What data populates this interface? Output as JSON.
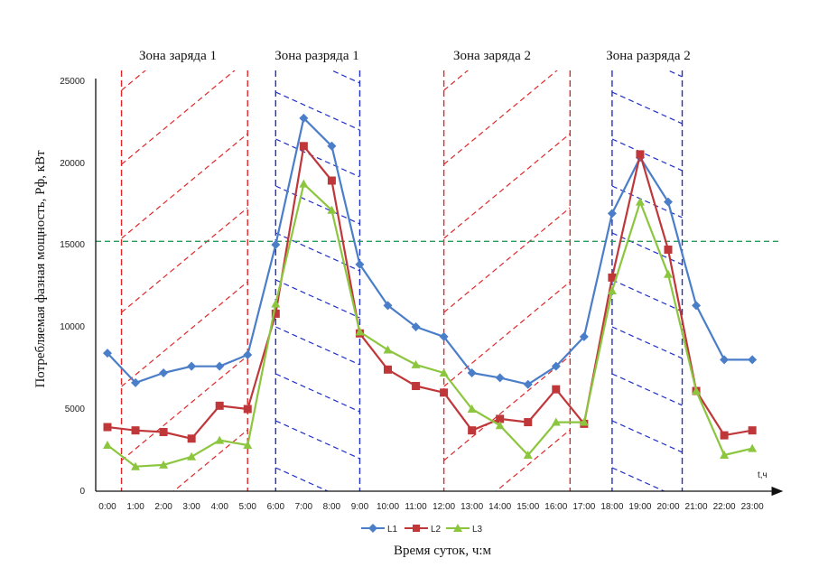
{
  "chart_data": {
    "type": "line",
    "ylabel": "Потребляемая фазная мощность, Рф, кВт",
    "xlabel": "Время суток, ч:м",
    "x_axis_unit_label": "t,ч",
    "ylim": [
      0,
      25000
    ],
    "yticks": [
      "0",
      "5000",
      "10000",
      "15000",
      "20000",
      "25000"
    ],
    "categories": [
      "0:00",
      "1:00",
      "2:00",
      "3:00",
      "4:00",
      "5:00",
      "6:00",
      "7:00",
      "8:00",
      "9:00",
      "10:00",
      "11:00",
      "12:00",
      "13:00",
      "14:00",
      "15:00",
      "16:00",
      "17:00",
      "18:00",
      "19:00",
      "20:00",
      "21:00",
      "22:00",
      "23:00"
    ],
    "series": [
      {
        "name": "L1",
        "color": "#4a7ec9",
        "marker": "diamond",
        "values": [
          8400,
          6600,
          7200,
          7600,
          7600,
          8300,
          15000,
          22700,
          21000,
          13800,
          11300,
          10000,
          9400,
          7200,
          6900,
          6500,
          7600,
          9400,
          16900,
          20300,
          17600,
          11300,
          8000,
          8000
        ]
      },
      {
        "name": "L2",
        "color": "#c0373a",
        "marker": "square",
        "values": [
          3900,
          3700,
          3600,
          3200,
          5200,
          5000,
          10800,
          21000,
          18900,
          9600,
          7400,
          6400,
          6000,
          3700,
          4400,
          4200,
          6200,
          4100,
          13000,
          20500,
          14700,
          6100,
          3400,
          3700
        ]
      },
      {
        "name": "L3",
        "color": "#8cc63f",
        "marker": "triangle",
        "values": [
          2800,
          1500,
          1600,
          2100,
          3100,
          2800,
          11400,
          18700,
          17100,
          9700,
          8600,
          7700,
          7200,
          5000,
          4000,
          2200,
          4200,
          4200,
          12200,
          17600,
          13200,
          6100,
          2200,
          2600
        ]
      }
    ],
    "threshold": {
      "value": 15200,
      "color": "#2a9a5a",
      "style": "dashed"
    },
    "zones": [
      {
        "label": "Зона заряда 1",
        "type": "charge",
        "color": "#e0282a",
        "start": 0.5,
        "end": 5.0
      },
      {
        "label": "Зона разряда 1",
        "type": "discharge",
        "color": "#2230c8",
        "start": 6.0,
        "end": 9.0
      },
      {
        "label": "Зона заряда 2",
        "type": "charge",
        "color": "#e0282a",
        "start": 12.0,
        "end": 16.5
      },
      {
        "label": "Зона разряда 2",
        "type": "discharge",
        "color": "#2230c8",
        "start": 18.0,
        "end": 20.5
      }
    ]
  }
}
